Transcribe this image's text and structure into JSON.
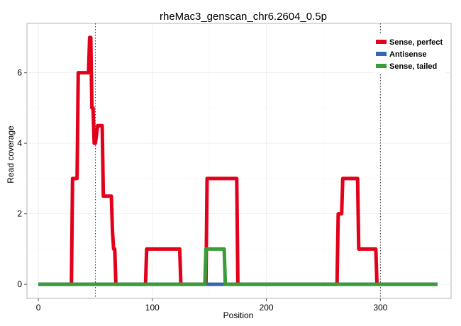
{
  "chart_data": {
    "type": "line",
    "title": "rheMac3_genscan_chr6.2604_0.5p",
    "xlabel": "Position",
    "ylabel": "Read coverage",
    "xlim": [
      -10,
      362
    ],
    "ylim": [
      -0.4,
      7.4
    ],
    "xticks": [
      0,
      100,
      200,
      300
    ],
    "yticks": [
      0,
      2,
      4,
      6
    ],
    "grid": true,
    "legend_position": "top-right",
    "vlines": [
      50,
      300
    ],
    "series": [
      {
        "name": "Sense, perfect",
        "color": "#E3001B",
        "x": [
          0,
          29,
          30,
          34,
          35,
          44,
          45,
          46,
          47,
          48,
          49,
          50,
          52,
          53,
          56,
          57,
          64,
          65,
          66,
          67,
          68,
          94,
          95,
          124,
          125,
          147,
          148,
          174,
          175,
          262,
          263,
          266,
          267,
          280,
          281,
          292,
          293,
          296,
          297,
          350
        ],
        "y": [
          0,
          0,
          3,
          3,
          6,
          6,
          7,
          7,
          5,
          5,
          4,
          4,
          4.5,
          4.5,
          4.5,
          2.5,
          2.5,
          1.5,
          1,
          1,
          0,
          0,
          1,
          1,
          0,
          0,
          3,
          3,
          0,
          0,
          2,
          2,
          3,
          3,
          1,
          1,
          1,
          1,
          0,
          0
        ]
      },
      {
        "name": "Antisense",
        "color": "#3366B2",
        "x": [
          0,
          350
        ],
        "y": [
          0,
          0
        ]
      },
      {
        "name": "Sense, tailed",
        "color": "#3A9D3A",
        "x": [
          0,
          146,
          147,
          163,
          164,
          350
        ],
        "y": [
          0,
          0,
          1,
          1,
          0,
          0
        ]
      }
    ]
  }
}
